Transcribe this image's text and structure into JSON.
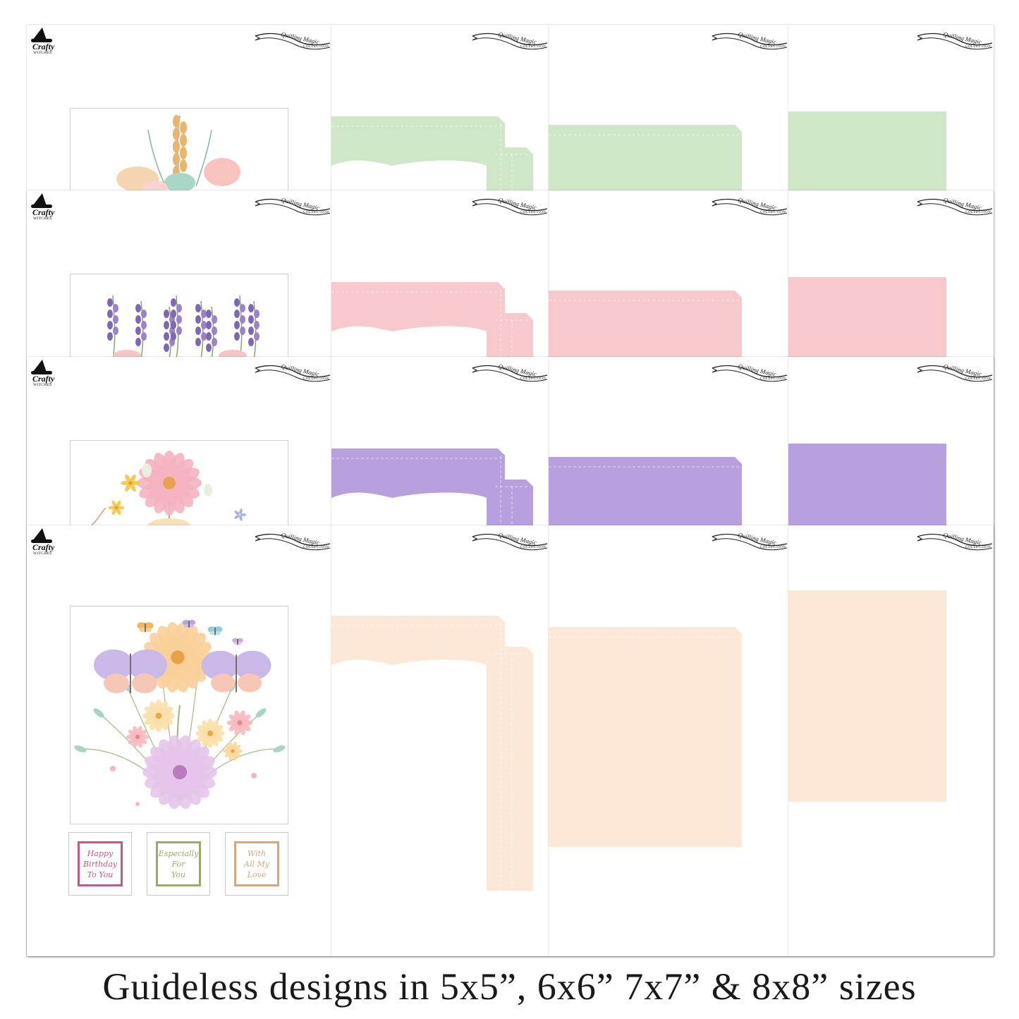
{
  "brand": {
    "logo_title": "Crafty",
    "logo_subtitle": "WITCHES"
  },
  "banner": {
    "line1": "Quilling Magic",
    "line2": "COLLECTION"
  },
  "colors": {
    "green": "#cfe6c7",
    "pink": "#f7c9cd",
    "lilac": "#b8a0df",
    "peach": "#fde8d7"
  },
  "rows": [
    {
      "color": "green",
      "artwork": "wheat-and-pastel-flowers"
    },
    {
      "color": "pink",
      "artwork": "lavender-sprigs"
    },
    {
      "color": "lilac",
      "artwork": "daisy-and-wildflowers"
    },
    {
      "color": "peach",
      "artwork": "butterflies-and-flower-bouquet"
    }
  ],
  "sentiments": [
    {
      "text": "Happy\nBirthday\nTo You",
      "color": "#b85c8a"
    },
    {
      "text": "Especially\nFor\nYou",
      "color": "#9aaa6c"
    },
    {
      "text": "With\nAll My\nLove",
      "color": "#d6a77c"
    }
  ],
  "caption": "Guideless designs in 5x5”, 6x6” 7x7” & 8x8” sizes"
}
